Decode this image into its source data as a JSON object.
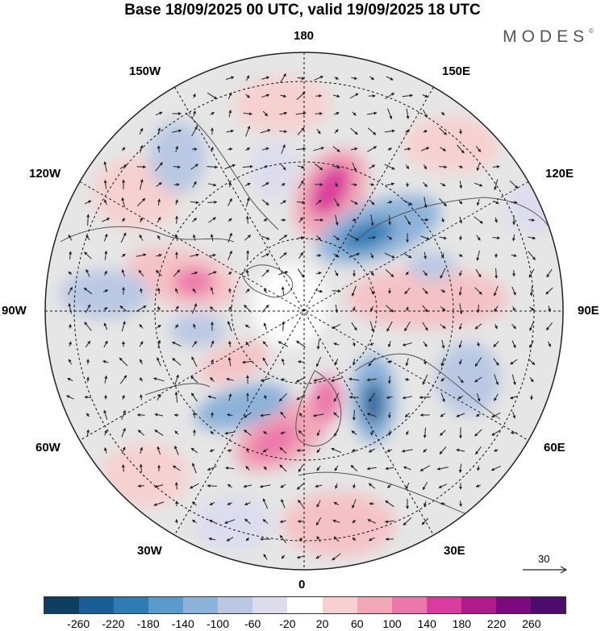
{
  "title": "Base 18/09/2025 00 UTC, valid 19/09/2025 18 UTC",
  "brand": "MODES",
  "brand_mark": "©",
  "longitude_labels": {
    "top": "180",
    "bottom": "0",
    "left": "90W",
    "right": "90E",
    "upper_left_30": "150W",
    "upper_left_60": "120W",
    "upper_right_30": "150E",
    "upper_right_60": "120E",
    "lower_left_60": "60W",
    "lower_left_30": "30W",
    "lower_right_60": "60E",
    "lower_right_30": "30E"
  },
  "colorbar": {
    "ticks": [
      "-260",
      "-220",
      "-180",
      "-140",
      "-100",
      "-60",
      "-20",
      "20",
      "60",
      "100",
      "140",
      "180",
      "220",
      "260"
    ],
    "colors": [
      "#0d3f63",
      "#175f94",
      "#2e7bb6",
      "#5a9bcb",
      "#8db2d9",
      "#bac8e3",
      "#dcdcee",
      "#ffffff",
      "#f7d0d0",
      "#f2a6b7",
      "#ec78ab",
      "#d93c9c",
      "#b01a8a",
      "#7c0a7f",
      "#4d0b6b"
    ]
  },
  "vector_scale": {
    "label": "30"
  }
}
